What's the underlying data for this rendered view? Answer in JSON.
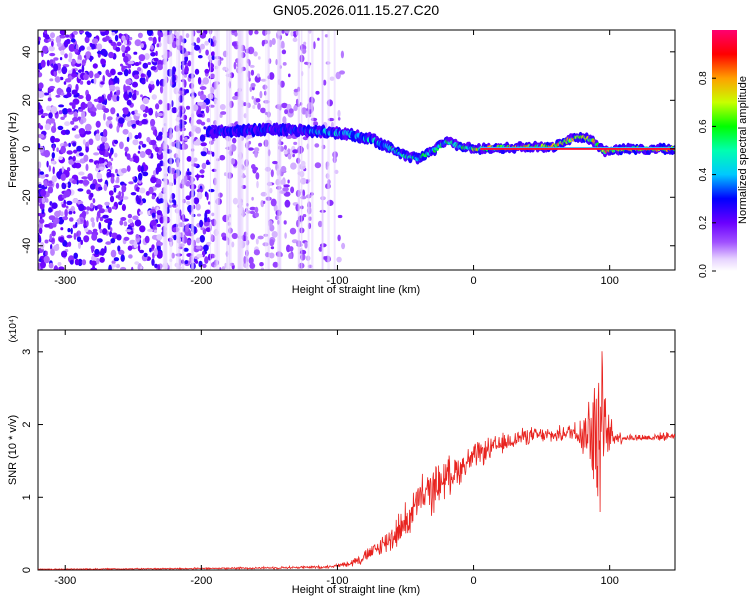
{
  "title": "GN05.2026.011.15.27.C20",
  "chart_data": [
    {
      "type": "heatmap",
      "xlabel": "Height of straight line (km)",
      "ylabel": "Frequency (Hz)",
      "xlim": [
        -320,
        148
      ],
      "ylim": [
        -50,
        49
      ],
      "xticks": [
        -300,
        -200,
        -100,
        0,
        100
      ],
      "yticks": [
        -40,
        -20,
        0,
        20,
        40
      ],
      "grid": false,
      "ridge": {
        "description_points_x": [
          -190,
          -150,
          -110,
          -90,
          -75,
          -60,
          -50,
          -40,
          -30,
          -20,
          -10,
          0,
          60,
          72,
          80,
          88,
          96,
          110,
          148
        ],
        "description_points_y": [
          7,
          8,
          7,
          6,
          4,
          0,
          -3,
          -4,
          -1,
          3,
          1,
          0,
          1,
          4,
          5,
          3,
          -1,
          0,
          0
        ]
      },
      "colorbar": {
        "label": "Normalized spectral amplitude",
        "range": [
          0,
          1
        ],
        "ticks": [
          "0.0",
          "0.2",
          "0.4",
          "0.6",
          "0.8"
        ]
      }
    },
    {
      "type": "line",
      "xlabel": "Height of straight line (km)",
      "ylabel": "SNR (10 * v/v)",
      "y_multiplier": "(x10⁴)",
      "xlim": [
        -320,
        148
      ],
      "ylim": [
        0,
        3.3
      ],
      "xticks": [
        -300,
        -200,
        -100,
        0,
        100
      ],
      "yticks": [
        0,
        1,
        2,
        3
      ],
      "grid": false,
      "color": "#e8231f",
      "series": [
        {
          "name": "SNR",
          "envelope_x": [
            -320,
            -200,
            -150,
            -110,
            -100,
            -90,
            -80,
            -70,
            -60,
            -50,
            -45,
            -40,
            -35,
            -30,
            -25,
            -20,
            -10,
            0,
            10,
            20,
            30,
            40,
            50,
            60,
            70,
            78,
            84,
            88,
            92,
            95,
            100,
            110,
            120,
            130,
            148
          ],
          "envelope_y": [
            0.01,
            0.02,
            0.03,
            0.04,
            0.06,
            0.1,
            0.18,
            0.3,
            0.45,
            0.65,
            0.8,
            0.95,
            1.05,
            1.1,
            1.2,
            1.28,
            1.4,
            1.55,
            1.65,
            1.72,
            1.8,
            1.85,
            1.85,
            1.85,
            1.9,
            1.9,
            1.9,
            1.9,
            1.7,
            1.85,
            1.85,
            1.82,
            1.82,
            1.82,
            1.85
          ],
          "noise_x": [
            -320,
            -200,
            -100,
            -70,
            -50,
            -30,
            -10,
            10,
            30,
            50,
            70,
            80,
            86,
            90,
            94,
            98,
            110,
            148
          ],
          "noise_y": [
            0.005,
            0.01,
            0.02,
            0.12,
            0.25,
            0.3,
            0.2,
            0.15,
            0.12,
            0.1,
            0.1,
            0.3,
            0.6,
            1.1,
            1.0,
            0.3,
            0.05,
            0.05
          ]
        }
      ]
    }
  ]
}
